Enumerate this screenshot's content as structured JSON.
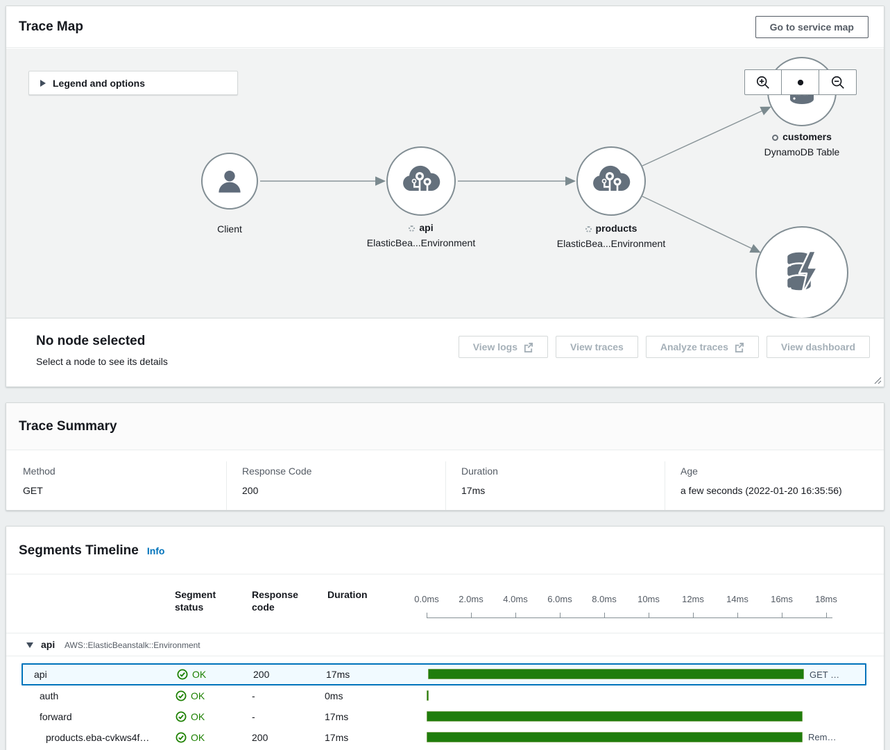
{
  "trace_map": {
    "title": "Trace Map",
    "go_to_service_map_label": "Go to service map",
    "legend_toggle_label": "Legend and options",
    "nodes": {
      "client": {
        "label": "Client"
      },
      "api": {
        "label": "api",
        "sublabel": "ElasticBea...Environment"
      },
      "products": {
        "label": "products",
        "sublabel": "ElasticBea...Environment"
      },
      "customers": {
        "label": "customers",
        "sublabel": "DynamoDB Table"
      }
    },
    "no_selection": {
      "title": "No node selected",
      "subtitle": "Select a node to see its details"
    },
    "actions": {
      "view_logs": "View logs",
      "view_traces": "View traces",
      "analyze_traces": "Analyze traces",
      "view_dashboard": "View dashboard"
    }
  },
  "trace_summary": {
    "title": "Trace Summary",
    "fields": [
      {
        "label": "Method",
        "value": "GET"
      },
      {
        "label": "Response Code",
        "value": "200"
      },
      {
        "label": "Duration",
        "value": "17ms"
      },
      {
        "label": "Age",
        "value": "a few seconds (2022-01-20 16:35:56)"
      }
    ]
  },
  "segments_timeline": {
    "title": "Segments Timeline",
    "info_label": "Info",
    "columns": {
      "status": "Segment status",
      "code": "Response code",
      "duration": "Duration"
    },
    "axis_ticks": [
      "0.0ms",
      "2.0ms",
      "4.0ms",
      "6.0ms",
      "8.0ms",
      "10ms",
      "12ms",
      "14ms",
      "16ms",
      "18ms"
    ],
    "group": {
      "name": "api",
      "type": "AWS::ElasticBeanstalk::Environment"
    },
    "rows": [
      {
        "name": "api",
        "status": "OK",
        "code": "200",
        "duration": "17ms",
        "bar_ms": 17,
        "bar_label": "GET …",
        "selected": true
      },
      {
        "name": "auth",
        "status": "OK",
        "code": "-",
        "duration": "0ms",
        "bar_ms": 0.1,
        "bar_label": ""
      },
      {
        "name": "forward",
        "status": "OK",
        "code": "-",
        "duration": "17ms",
        "bar_ms": 17,
        "bar_label": ""
      },
      {
        "name": "products.eba-cvkws4f…",
        "status": "OK",
        "code": "200",
        "duration": "17ms",
        "bar_ms": 17,
        "bar_label": "Rem…"
      }
    ]
  },
  "colors": {
    "accent_blue": "#0073bb",
    "ok_green": "#1d8102",
    "bar_green": "#1f7d0d",
    "selected_row_bg": "#f1faff",
    "map_bg": "#f2f3f3"
  }
}
